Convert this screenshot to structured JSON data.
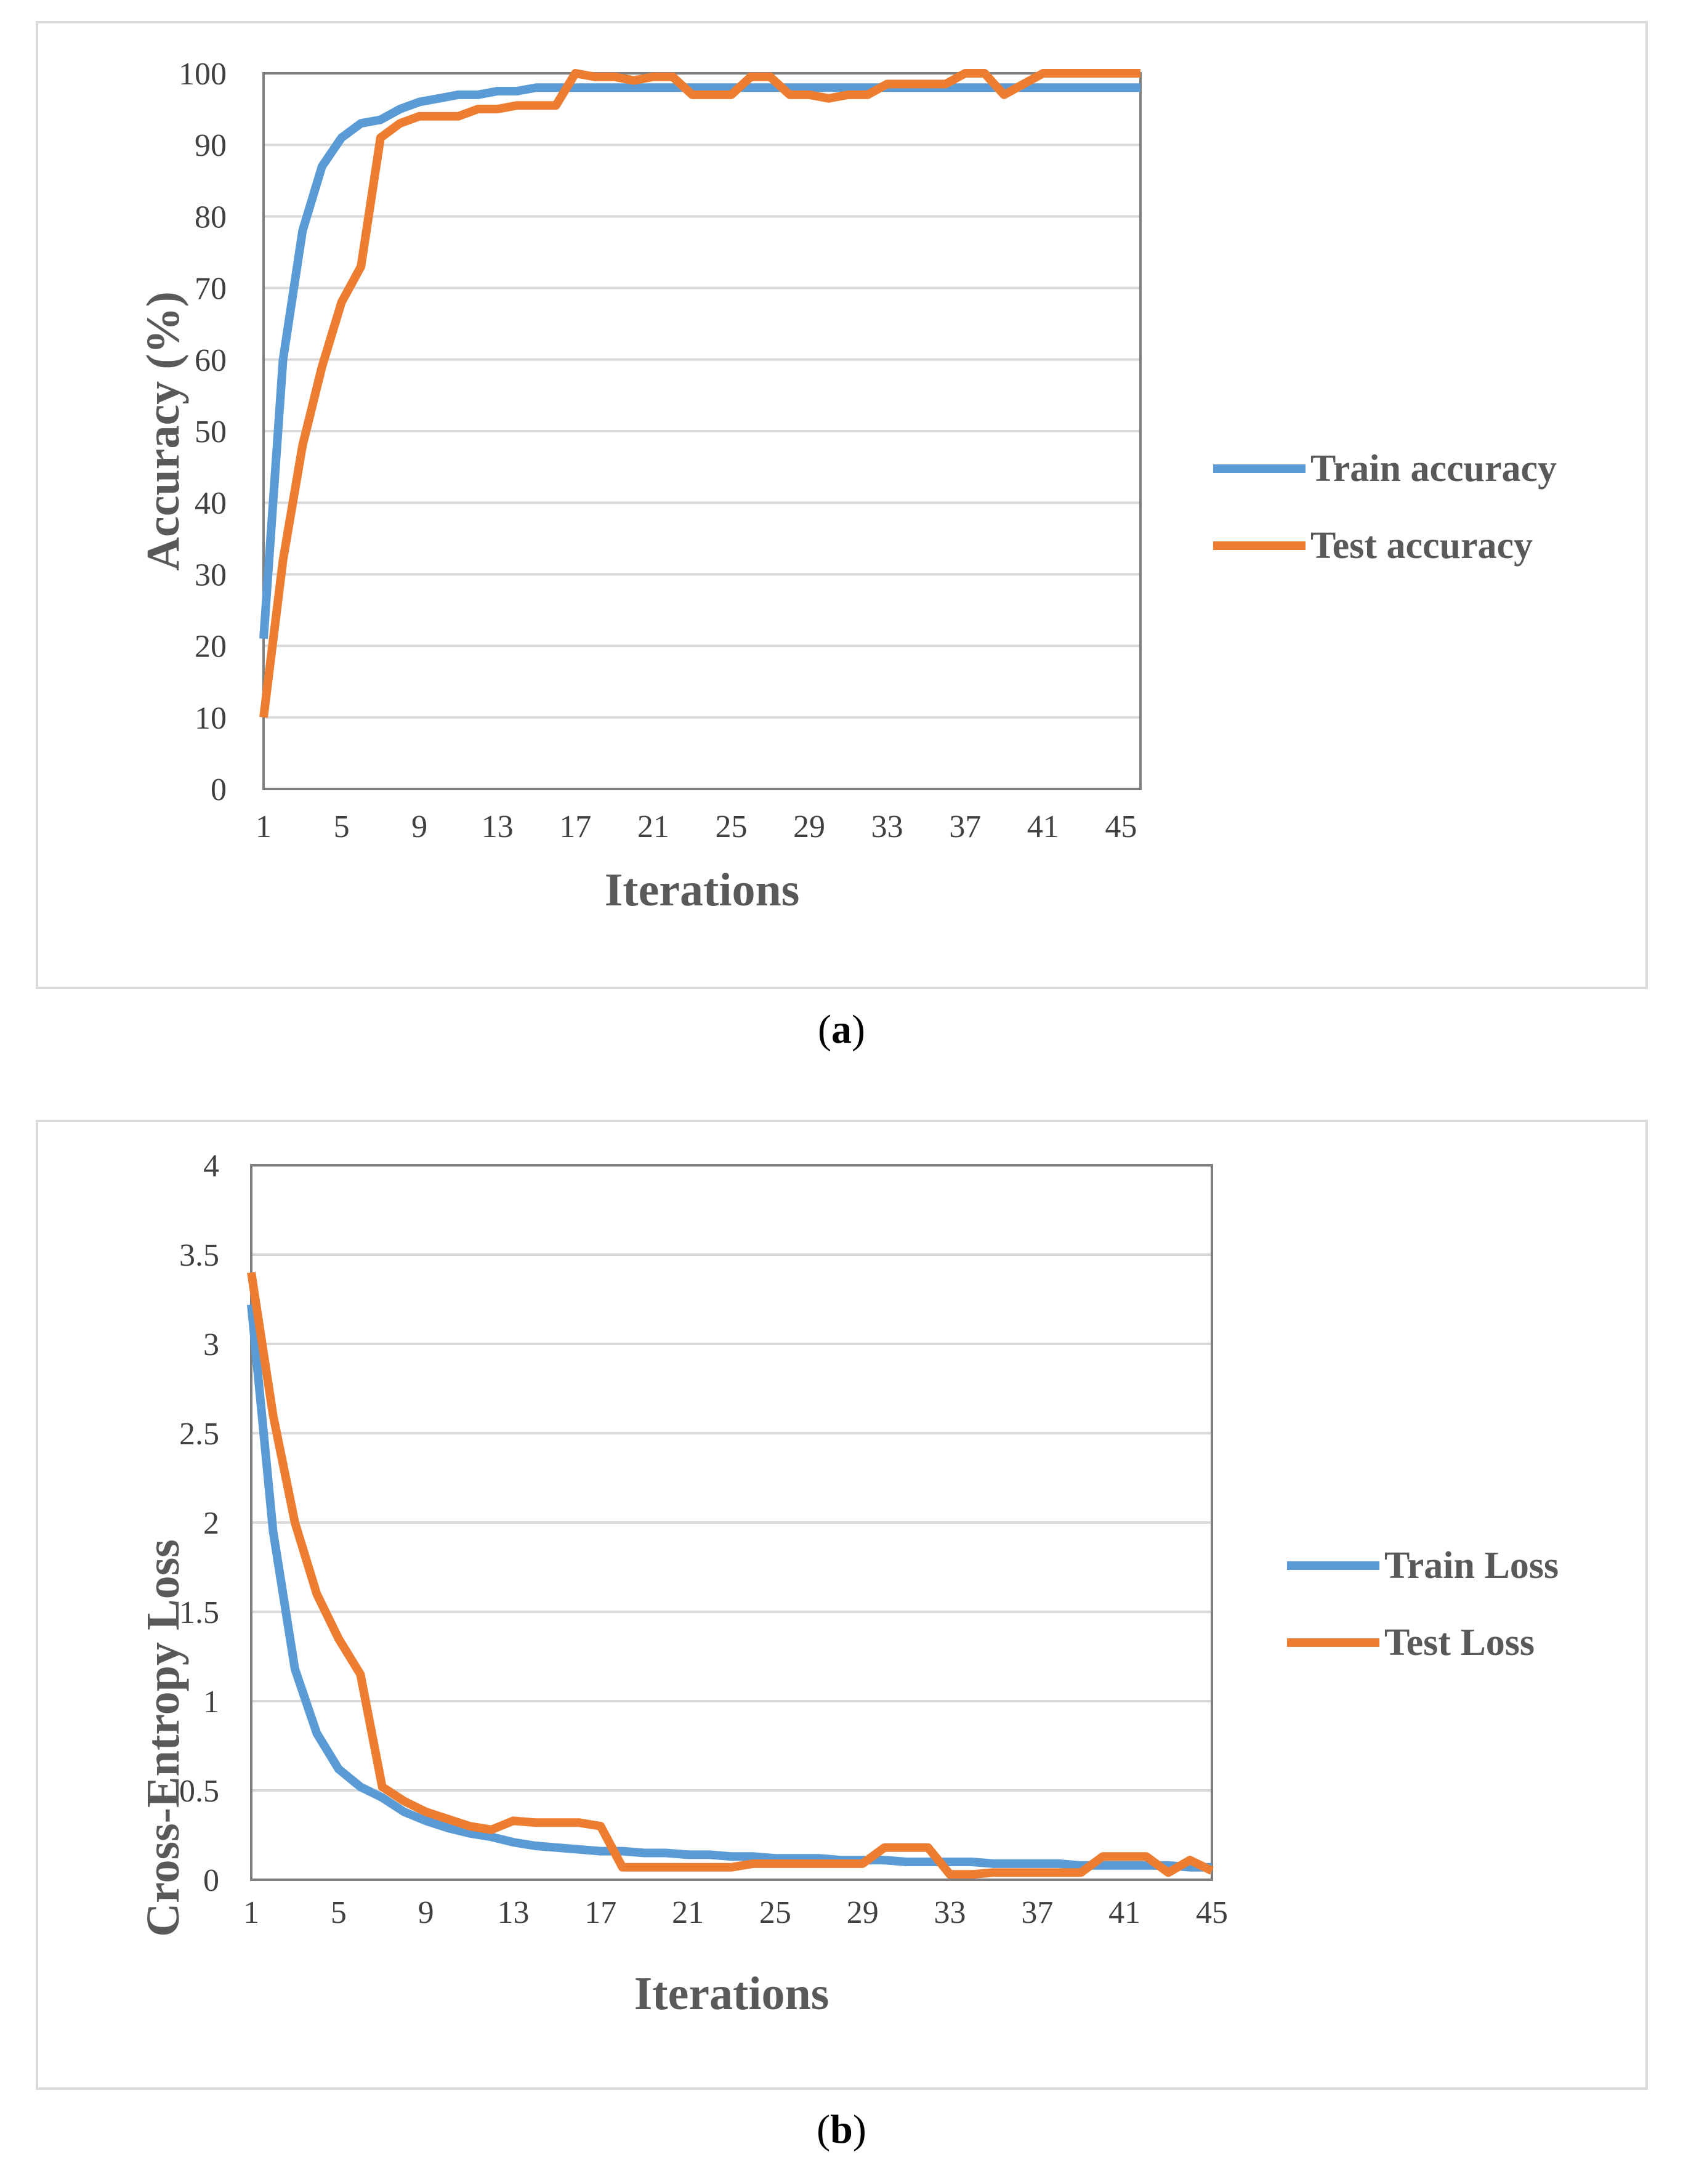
{
  "chart_data": [
    {
      "id": "a",
      "type": "line",
      "caption_label": "a",
      "xlabel": "Iterations",
      "ylabel": "Accuracy (%)",
      "ylim": [
        0,
        100
      ],
      "yticks": [
        "0",
        "10",
        "20",
        "30",
        "40",
        "50",
        "60",
        "70",
        "80",
        "90",
        "100"
      ],
      "ytick_values": [
        0,
        10,
        20,
        30,
        40,
        50,
        60,
        70,
        80,
        90,
        100
      ],
      "xticks": [
        "1",
        "5",
        "9",
        "13",
        "17",
        "21",
        "25",
        "29",
        "33",
        "37",
        "41",
        "45"
      ],
      "xlim": [
        1,
        46
      ],
      "grid": true,
      "legend_position": "right",
      "series": [
        {
          "name": "Train accuracy",
          "color": "#5b9bd5",
          "values": [
            21,
            60,
            78,
            87,
            91,
            93,
            93.5,
            95,
            96,
            96.5,
            97,
            97,
            97.5,
            97.5,
            98,
            98,
            98,
            98,
            98,
            98,
            98,
            98,
            98,
            98,
            98,
            98,
            98,
            98,
            98,
            98,
            98,
            98,
            98,
            98,
            98,
            98,
            98,
            98,
            98,
            98,
            98,
            98,
            98,
            98,
            98,
            98
          ]
        },
        {
          "name": "Test accuracy",
          "color": "#ed7d31",
          "values": [
            10,
            32,
            48,
            59,
            68,
            73,
            91,
            93,
            94,
            94,
            94,
            95,
            95,
            95.5,
            95.5,
            95.5,
            100,
            99.5,
            99.5,
            99,
            99.5,
            99.5,
            97,
            97,
            97,
            99.5,
            99.5,
            97,
            97,
            96.5,
            97,
            97,
            98.5,
            98.5,
            98.5,
            98.5,
            100,
            100,
            97,
            98.5,
            100,
            100,
            100,
            100,
            100,
            100
          ]
        }
      ]
    },
    {
      "id": "b",
      "type": "line",
      "caption_label": "b",
      "xlabel": "Iterations",
      "ylabel": "Cross-Entropy Loss",
      "ylim": [
        0,
        4
      ],
      "yticks": [
        "0",
        "0.5",
        "1",
        "1.5",
        "2",
        "2.5",
        "3",
        "3.5",
        "4"
      ],
      "ytick_values": [
        0,
        0.5,
        1,
        1.5,
        2,
        2.5,
        3,
        3.5,
        4
      ],
      "xticks": [
        "1",
        "5",
        "9",
        "13",
        "17",
        "21",
        "25",
        "29",
        "33",
        "37",
        "41",
        "45"
      ],
      "xlim": [
        1,
        45
      ],
      "grid": true,
      "legend_position": "right",
      "series": [
        {
          "name": "Train Loss",
          "color": "#5b9bd5",
          "values": [
            3.22,
            1.95,
            1.18,
            0.82,
            0.62,
            0.52,
            0.46,
            0.38,
            0.33,
            0.29,
            0.26,
            0.24,
            0.21,
            0.19,
            0.18,
            0.17,
            0.16,
            0.16,
            0.15,
            0.15,
            0.14,
            0.14,
            0.13,
            0.13,
            0.12,
            0.12,
            0.12,
            0.11,
            0.11,
            0.11,
            0.1,
            0.1,
            0.1,
            0.1,
            0.09,
            0.09,
            0.09,
            0.09,
            0.08,
            0.08,
            0.08,
            0.08,
            0.08,
            0.07,
            0.07
          ]
        },
        {
          "name": "Test Loss",
          "color": "#ed7d31",
          "values": [
            3.4,
            2.6,
            2.0,
            1.6,
            1.35,
            1.15,
            0.52,
            0.44,
            0.38,
            0.34,
            0.3,
            0.28,
            0.33,
            0.32,
            0.32,
            0.32,
            0.3,
            0.07,
            0.07,
            0.07,
            0.07,
            0.07,
            0.07,
            0.09,
            0.09,
            0.09,
            0.09,
            0.09,
            0.09,
            0.18,
            0.18,
            0.18,
            0.03,
            0.03,
            0.04,
            0.04,
            0.04,
            0.04,
            0.04,
            0.13,
            0.13,
            0.13,
            0.04,
            0.11,
            0.05
          ]
        }
      ]
    }
  ]
}
